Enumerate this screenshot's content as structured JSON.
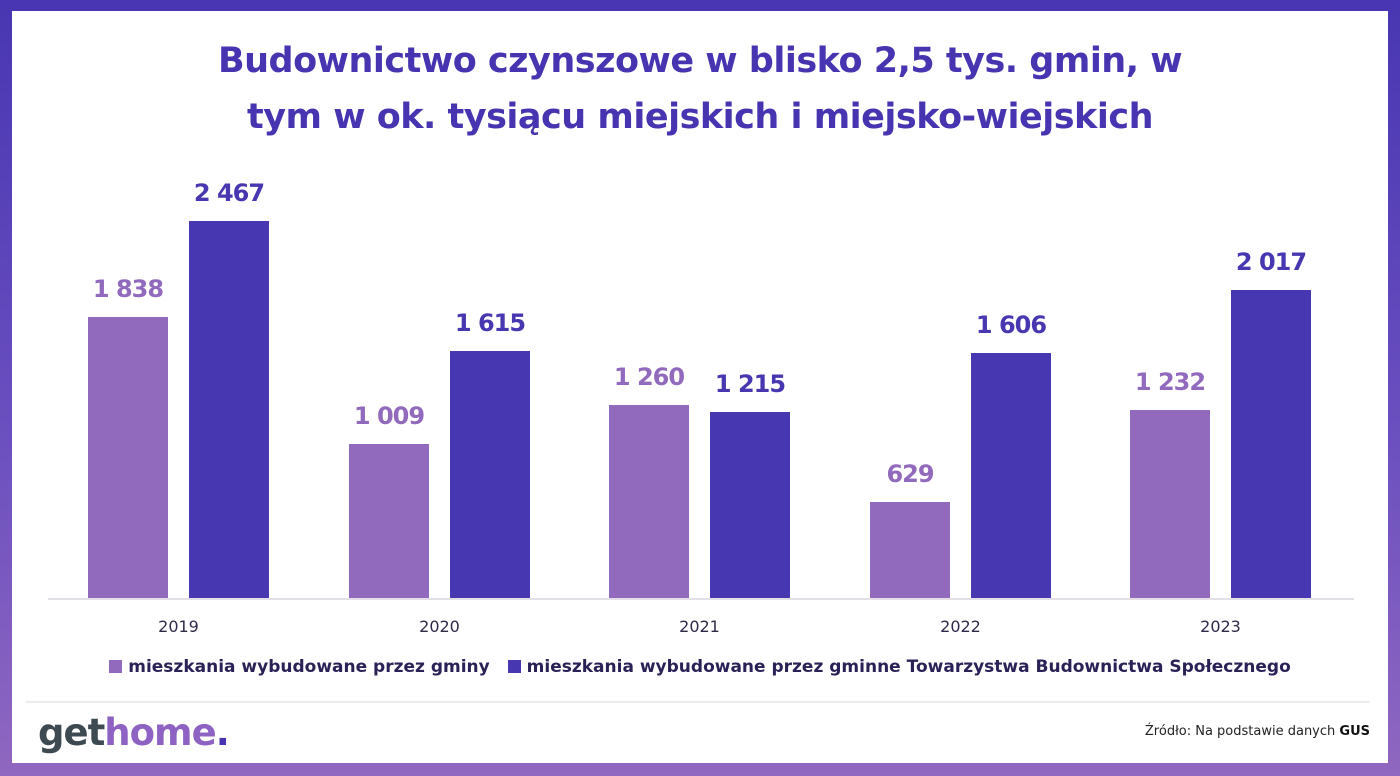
{
  "title": {
    "line1": "Budownictwo czynszowe w blisko 2,5 tys. gmin, w",
    "line2": "tym w ok. tysiącu miejskich i miejsko-wiejskich"
  },
  "colors": {
    "series1": "#9169bd",
    "series2": "#4737b0",
    "title": "#4634b0",
    "frame": "#4836b2"
  },
  "chart_data": {
    "type": "bar",
    "title": "Budownictwo czynszowe w blisko 2,5 tys. gmin, w tym w ok. tysiącu miejskich i miejsko-wiejskich",
    "xlabel": "",
    "ylabel": "",
    "categories": [
      "2019",
      "2020",
      "2021",
      "2022",
      "2023"
    ],
    "series": [
      {
        "name": "mieszkania wybudowane przez gminy",
        "values": [
          1838,
          1009,
          1260,
          629,
          1232
        ],
        "labels": [
          "1 838",
          "1 009",
          "1 260",
          "629",
          "1 232"
        ]
      },
      {
        "name": "mieszkania wybudowane przez gminne Towarzystwa Budownictwa Społecznego",
        "values": [
          2467,
          1615,
          1215,
          1606,
          2017
        ],
        "labels": [
          "2 467",
          "1 615",
          "1 215",
          "1 606",
          "2 017"
        ]
      }
    ],
    "grid": false,
    "yaxis_visible": false,
    "legend_position": "bottom",
    "ylim": [
      0,
      2500
    ]
  },
  "legend": {
    "items": [
      "mieszkania wybudowane przez gminy",
      "mieszkania wybudowane przez gminne Towarzystwa Budownictwa Społecznego"
    ]
  },
  "footer": {
    "logo_get": "get",
    "logo_home": "home",
    "logo_dot": ".",
    "source_prefix": "Źródło: Na podstawie danych ",
    "source_bold": "GUS"
  }
}
